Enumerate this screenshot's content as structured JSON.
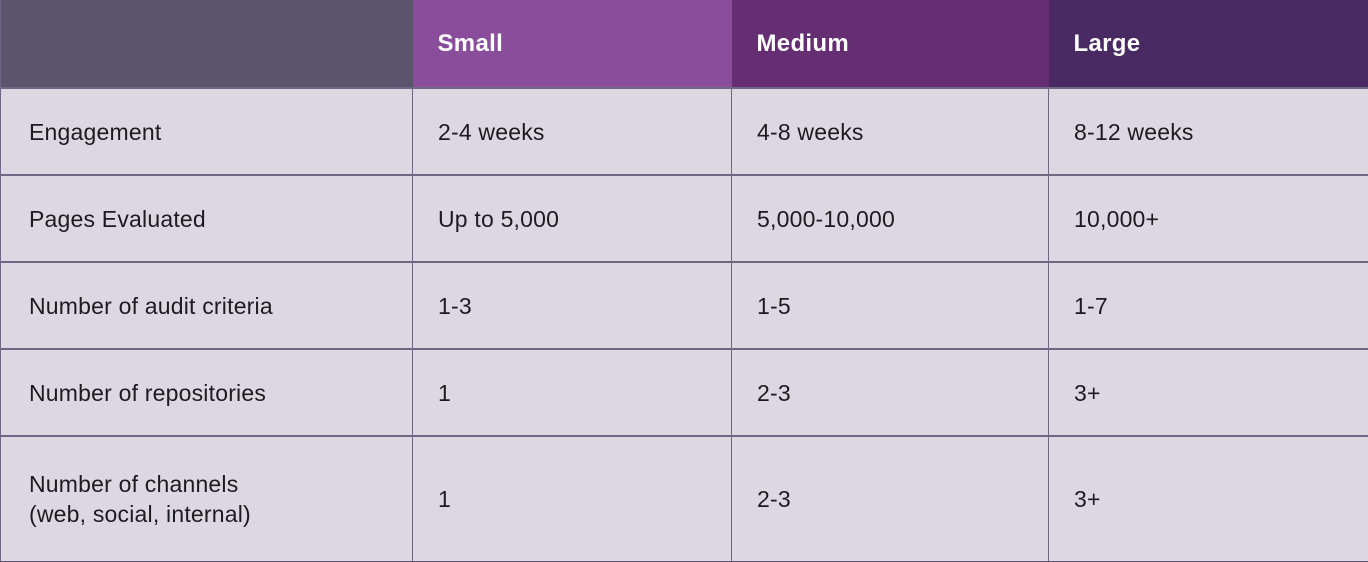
{
  "chart_data": {
    "type": "table",
    "columns": [
      "",
      "Small",
      "Medium",
      "Large"
    ],
    "rows": [
      [
        "Engagement",
        "2-4 weeks",
        "4-8 weeks",
        "8-12 weeks"
      ],
      [
        "Pages Evaluated",
        "Up to 5,000",
        "5,000-10,000",
        "10,000+"
      ],
      [
        "Number of audit criteria",
        "1-3",
        "1-5",
        "1-7"
      ],
      [
        "Number of repositories",
        "1",
        "2-3",
        "3+"
      ],
      [
        "Number of channels (web, social, internal)",
        "1",
        "2-3",
        "3+"
      ]
    ],
    "legend": "none",
    "grid": "on"
  },
  "table": {
    "header": {
      "blank": "",
      "small": "Small",
      "medium": "Medium",
      "large": "Large"
    },
    "rows": [
      {
        "label": "Engagement",
        "small": "2-4 weeks",
        "medium": "4-8 weeks",
        "large": "8-12 weeks"
      },
      {
        "label": "Pages Evaluated",
        "small": "Up to 5,000",
        "medium": "5,000-10,000",
        "large": "10,000+"
      },
      {
        "label": "Number of audit criteria",
        "small": "1-3",
        "medium": "1-5",
        "large": "1-7"
      },
      {
        "label": "Number of repositories",
        "small": "1",
        "medium": "2-3",
        "large": "3+"
      },
      {
        "label": "Number of channels",
        "label2": "(web, social, internal)",
        "small": "1",
        "medium": "2-3",
        "large": "3+"
      }
    ],
    "colors": {
      "header_blank_bg": "#5C546C",
      "header_small_bg": "#8A4D9C",
      "header_medium_bg": "#652D72",
      "header_large_bg": "#482961",
      "header_text": "#FFFFFF",
      "cell_bg": "#DBD8E2",
      "border": "#6F6785",
      "body_text": "#1C1B1F"
    }
  }
}
